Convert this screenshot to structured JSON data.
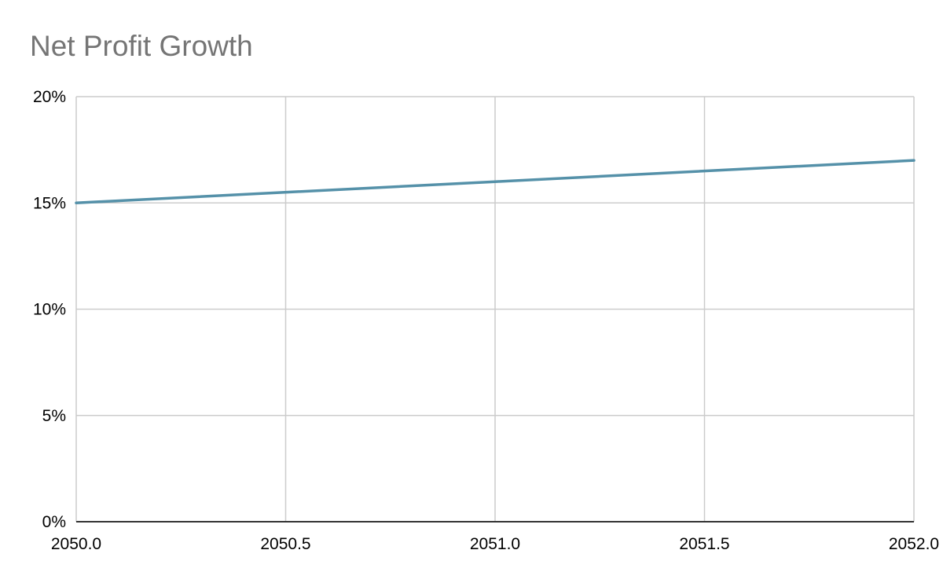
{
  "chart_data": {
    "type": "line",
    "title": "Net Profit Growth",
    "xlabel": "",
    "ylabel": "",
    "x": [
      2050.0,
      2051.0,
      2052.0
    ],
    "series": [
      {
        "values": [
          15,
          16,
          17
        ],
        "color": "#5591a9"
      }
    ],
    "xlim": [
      2050.0,
      2052.0
    ],
    "ylim": [
      0,
      20
    ],
    "x_ticks": [
      2050.0,
      2050.5,
      2051.0,
      2051.5,
      2052.0
    ],
    "x_tick_labels": [
      "2050.0",
      "2050.5",
      "2051.0",
      "2051.5",
      "2052.0"
    ],
    "y_ticks": [
      0,
      5,
      10,
      15,
      20
    ],
    "y_tick_labels": [
      "0%",
      "5%",
      "10%",
      "15%",
      "20%"
    ],
    "grid": true,
    "legend": "none",
    "colors": {
      "grid": "#cccccc",
      "axis": "#333333",
      "title": "#757575"
    }
  }
}
